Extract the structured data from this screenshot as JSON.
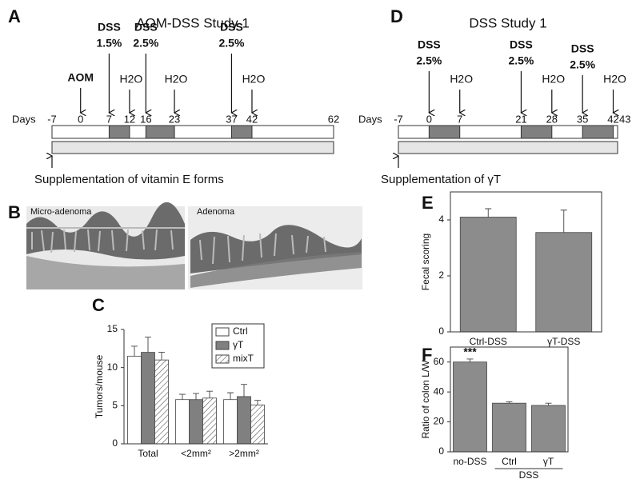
{
  "timelines": [
    {
      "label": "A",
      "title": "AOM-DSS Study 1",
      "days_label": "Days",
      "ticks": [
        -7,
        0,
        7,
        12,
        16,
        23,
        37,
        42,
        62
      ],
      "treatments": [
        {
          "day": 0,
          "lines": [
            "AOM"
          ]
        },
        {
          "day": 7,
          "lines": [
            "DSS",
            "1.5%"
          ]
        },
        {
          "day": 16,
          "lines": [
            "DSS",
            "2.5%"
          ]
        },
        {
          "day": 37,
          "lines": [
            "DSS",
            "2.5%"
          ]
        }
      ],
      "washouts": [
        {
          "day": 12,
          "label": "H2O"
        },
        {
          "day": 23,
          "label": "H2O"
        },
        {
          "day": 42,
          "label": "H2O"
        }
      ],
      "supplementation": "Supplementation of vitamin E forms"
    },
    {
      "label": "D",
      "title": "DSS Study 1",
      "days_label": "Days",
      "ticks": [
        -7,
        0,
        7,
        21,
        28,
        35,
        42,
        43
      ],
      "treatments": [
        {
          "day": 0,
          "lines": [
            "DSS",
            "2.5%"
          ]
        },
        {
          "day": 21,
          "lines": [
            "DSS",
            "2.5%"
          ]
        },
        {
          "day": 35,
          "lines": [
            "DSS",
            "2.5%"
          ]
        }
      ],
      "washouts": [
        {
          "day": 7,
          "label": "H2O"
        },
        {
          "day": 28,
          "label": "H2O"
        },
        {
          "day": 42,
          "label": "H2O"
        }
      ],
      "supplementation": "Supplementation of γT"
    }
  ],
  "histology": {
    "label": "B",
    "images": [
      "Micro-adenoma",
      "Adenoma"
    ]
  },
  "chart_data": [
    {
      "type": "bar",
      "panel": "C",
      "ylabel": "Tumors/mouse",
      "categories": [
        "Total",
        "<2mm²",
        ">2mm²"
      ],
      "series": [
        {
          "name": "Ctrl",
          "color": "#ffffff",
          "values": [
            11.5,
            5.8,
            5.8
          ],
          "errors": [
            1.3,
            0.7,
            0.9
          ]
        },
        {
          "name": "γT",
          "color": "#808080",
          "values": [
            12,
            5.8,
            6.2
          ],
          "errors": [
            2.0,
            0.8,
            1.6
          ]
        },
        {
          "name": "mixT",
          "color": "#ffffff",
          "hatch": true,
          "values": [
            11,
            6.0,
            5.1
          ],
          "errors": [
            1.0,
            0.9,
            0.6
          ]
        }
      ],
      "ylim": [
        0,
        15
      ],
      "yticks": [
        0,
        5,
        10,
        15
      ]
    },
    {
      "type": "bar",
      "panel": "E",
      "ylabel": "Fecal scoring",
      "categories": [
        "Ctrl-DSS",
        "γT-DSS"
      ],
      "color": "#8c8c8c",
      "values": [
        4.1,
        3.55
      ],
      "errors": [
        0.3,
        0.8
      ],
      "ylim": [
        0,
        5
      ],
      "yticks": [
        0,
        2,
        4
      ]
    },
    {
      "type": "bar",
      "panel": "F",
      "ylabel": "Ratio of colon L/W",
      "categories": [
        "no-DSS",
        "Ctrl",
        "γT"
      ],
      "color": "#8c8c8c",
      "values": [
        60,
        32.5,
        31
      ],
      "errors": [
        2,
        1,
        1.5
      ],
      "annotation": "***",
      "group_label": "DSS",
      "ylim": [
        0,
        70
      ],
      "yticks": [
        0,
        20,
        40,
        60
      ]
    }
  ]
}
